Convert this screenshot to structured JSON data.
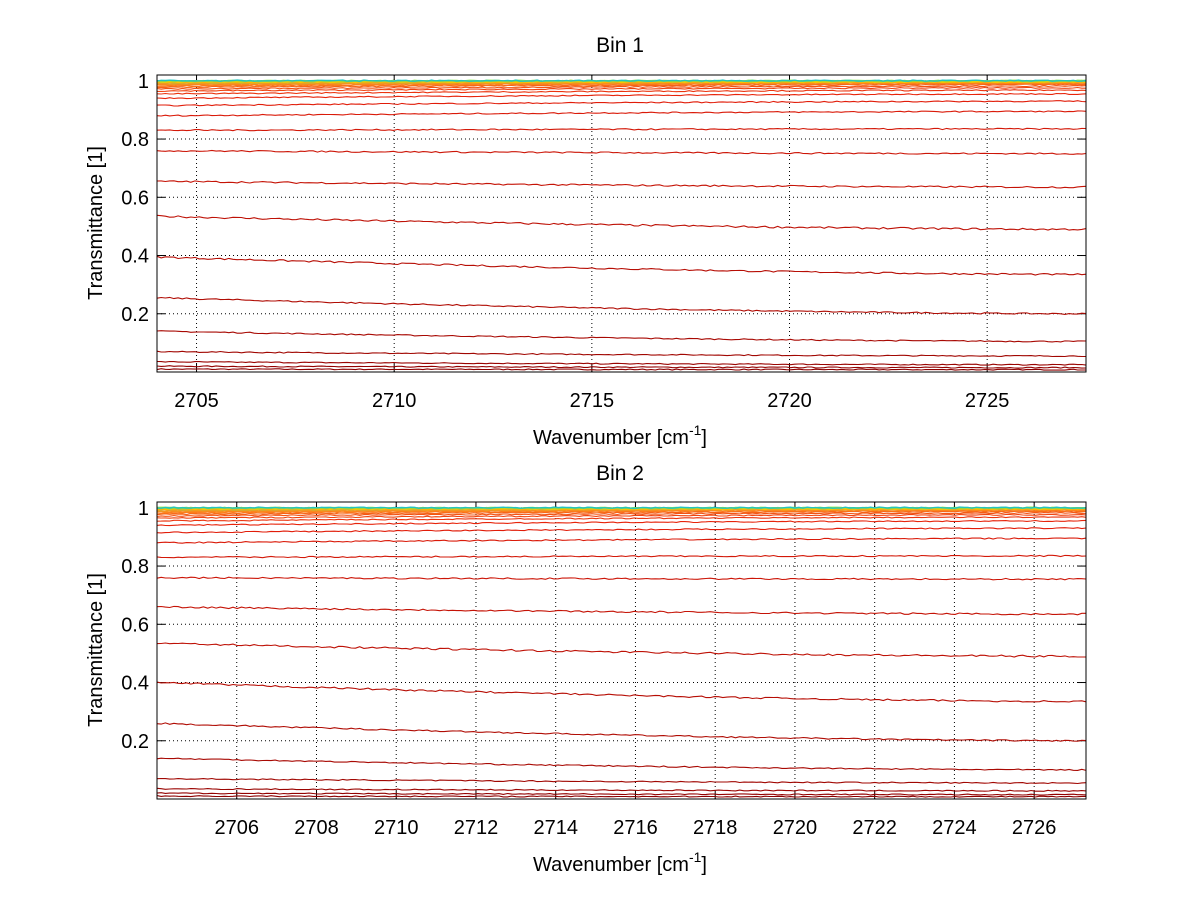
{
  "chart_data": [
    {
      "type": "line",
      "title": "Bin 1",
      "xlabel_base": "Wavenumber [cm",
      "xlabel_sup": "-1",
      "xlabel_close": "]",
      "ylabel": "Transmittance [1]",
      "xlim": [
        2704,
        2727.5
      ],
      "ylim": [
        0,
        1.02
      ],
      "xticks": [
        2705,
        2710,
        2715,
        2720,
        2725
      ],
      "yticks": [
        0.2,
        0.4,
        0.6,
        0.8,
        1
      ],
      "grid": true,
      "series_end_values": [
        [
          0.01,
          0.008
        ],
        [
          0.02,
          0.015
        ],
        [
          0.035,
          0.025
        ],
        [
          0.07,
          0.055
        ],
        [
          0.14,
          0.105
        ],
        [
          0.255,
          0.2
        ],
        [
          0.395,
          0.335
        ],
        [
          0.535,
          0.49
        ],
        [
          0.655,
          0.635
        ],
        [
          0.76,
          0.75
        ],
        [
          0.83,
          0.835
        ],
        [
          0.88,
          0.895
        ],
        [
          0.915,
          0.93
        ],
        [
          0.94,
          0.955
        ],
        [
          0.955,
          0.968
        ],
        [
          0.965,
          0.976
        ],
        [
          0.972,
          0.982
        ],
        [
          0.978,
          0.987
        ],
        [
          0.982,
          0.99
        ],
        [
          0.986,
          0.993
        ],
        [
          0.99,
          0.995
        ],
        [
          0.994,
          0.997
        ],
        [
          0.997,
          0.999
        ],
        [
          1.0,
          1.0
        ]
      ]
    },
    {
      "type": "line",
      "title": "Bin 2",
      "xlabel_base": "Wavenumber [cm",
      "xlabel_sup": "-1",
      "xlabel_close": "]",
      "ylabel": "Transmittance [1]",
      "xlim": [
        2704,
        2727.3
      ],
      "ylim": [
        0,
        1.02
      ],
      "xticks": [
        2706,
        2708,
        2710,
        2712,
        2714,
        2716,
        2718,
        2720,
        2722,
        2724,
        2726
      ],
      "yticks": [
        0.2,
        0.4,
        0.6,
        0.8,
        1
      ],
      "grid": true,
      "series_end_values": [
        [
          0.01,
          0.008
        ],
        [
          0.02,
          0.015
        ],
        [
          0.035,
          0.028
        ],
        [
          0.07,
          0.055
        ],
        [
          0.14,
          0.1
        ],
        [
          0.26,
          0.2
        ],
        [
          0.4,
          0.335
        ],
        [
          0.535,
          0.49
        ],
        [
          0.66,
          0.635
        ],
        [
          0.76,
          0.755
        ],
        [
          0.83,
          0.835
        ],
        [
          0.88,
          0.895
        ],
        [
          0.915,
          0.93
        ],
        [
          0.94,
          0.955
        ],
        [
          0.955,
          0.968
        ],
        [
          0.965,
          0.976
        ],
        [
          0.972,
          0.982
        ],
        [
          0.978,
          0.987
        ],
        [
          0.982,
          0.99
        ],
        [
          0.986,
          0.993
        ],
        [
          0.99,
          0.995
        ],
        [
          0.994,
          0.997
        ],
        [
          0.997,
          0.999
        ],
        [
          1.0,
          1.0
        ]
      ]
    }
  ]
}
